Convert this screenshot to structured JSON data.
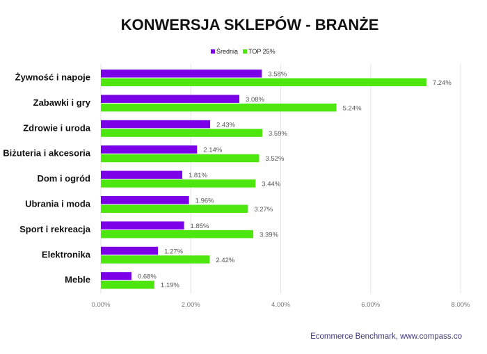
{
  "chart_data": {
    "type": "bar",
    "orientation": "horizontal",
    "title": "KONWERSJA SKLEPÓW - BRANŻE",
    "categories": [
      "Żywność i napoje",
      "Zabawki i gry",
      "Zdrowie i uroda",
      "Biżuteria i akcesoria",
      "Dom i ogród",
      "Ubrania i moda",
      "Sport i rekreacja",
      "Elektronika",
      "Meble"
    ],
    "series": [
      {
        "name": "Średnia",
        "color": "#7b00e8",
        "values": [
          3.58,
          3.08,
          2.43,
          2.14,
          1.81,
          1.96,
          1.85,
          1.27,
          0.68
        ],
        "labels": [
          "3.58%",
          "3.08%",
          "2.43%",
          "2.14%",
          "1.81%",
          "1.96%",
          "1.85%",
          "1.27%",
          "0.68%"
        ]
      },
      {
        "name": "TOP 25%",
        "color": "#4de60f",
        "values": [
          7.24,
          5.24,
          3.59,
          3.52,
          3.44,
          3.27,
          3.39,
          2.42,
          1.19
        ],
        "labels": [
          "7.24%",
          "5.24%",
          "3.59%",
          "3.52%",
          "3.44%",
          "3.27%",
          "3.39%",
          "2.42%",
          "1.19%"
        ]
      }
    ],
    "xlim": [
      0,
      8
    ],
    "xticks": [
      0,
      2,
      4,
      6,
      8
    ],
    "xtick_labels": [
      "0.00%",
      "2.00%",
      "4.00%",
      "6.00%",
      "8.00%"
    ],
    "legend_position": "top-center",
    "grid": true,
    "source": "Ecommerce Benchmark, www.compass.co"
  }
}
